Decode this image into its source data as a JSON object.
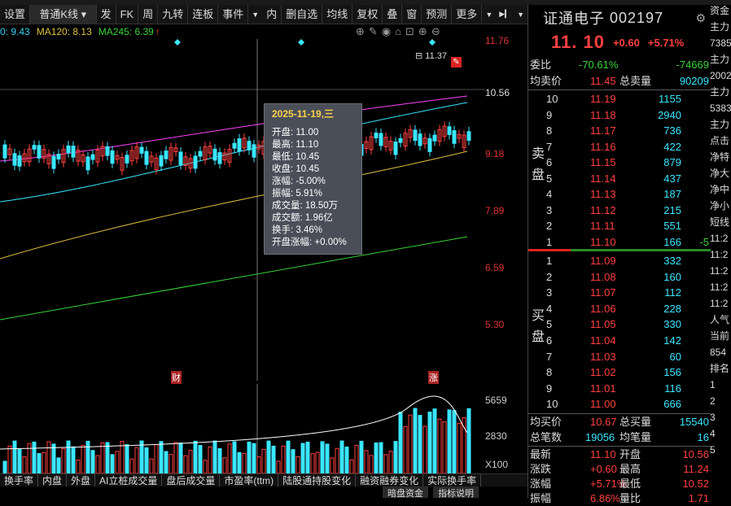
{
  "toolbar": {
    "settings": "设置",
    "ktype": "普通K线",
    "items": [
      "发",
      "FK",
      "周",
      "九转",
      "连板",
      "事件",
      "内",
      "删自选",
      "均线",
      "复权",
      "叠",
      "窗",
      "预测",
      "更多"
    ]
  },
  "ma": [
    {
      "label": "0: 9.43",
      "color": "#ff40ff"
    },
    {
      "label": "MA120: 8.13",
      "color": "#e0c040"
    },
    {
      "label": "MA245: 6.39",
      "color": "#39d339"
    }
  ],
  "price_axis": [
    "11.76",
    "10.56",
    "9.18",
    "7.89",
    "6.59",
    "5.30"
  ],
  "high_label": "11.37",
  "markers": {
    "cai": "财",
    "zhang": "涨"
  },
  "tooltip": {
    "date": "2025-11-19,三",
    "lines": [
      "开盘: 11.00",
      "最高: 11.10",
      "最低: 10.45",
      "收盘: 10.45",
      "涨幅: -5.00%",
      "振幅: 5.91%",
      "成交量: 18.50万",
      "成交额: 1.96亿",
      "换手: 3.46%",
      "开盘涨幅: +0.00%"
    ]
  },
  "vol_axis": [
    "5659",
    "2830",
    "X100"
  ],
  "bottom_tabs": [
    "换手率",
    "内盘",
    "外盘",
    "AI立桩成交量",
    "盘后成交量",
    "市盈率(ttm)",
    "陆股通持股变化",
    "融资融券变化",
    "实际换手率"
  ],
  "bottom_tabs2": [
    "暗盘资金",
    "指标说明"
  ],
  "stock": {
    "name": "证通电子",
    "code": "002197",
    "price": "11. 10",
    "change": "+0.60",
    "pct": "+5.71%"
  },
  "weibi": {
    "label": "委比",
    "pct": "-70.61%",
    "val": "-74669"
  },
  "junmai": {
    "label": "均卖价",
    "val": "11.45",
    "label2": "总卖量",
    "val2": "90209"
  },
  "sell": [
    {
      "n": "10",
      "p": "11.19",
      "v": "1155"
    },
    {
      "n": "9",
      "p": "11.18",
      "v": "2940"
    },
    {
      "n": "8",
      "p": "11.17",
      "v": "736"
    },
    {
      "n": "7",
      "p": "11.16",
      "v": "422"
    },
    {
      "n": "6",
      "p": "11.15",
      "v": "879"
    },
    {
      "n": "5",
      "p": "11.14",
      "v": "437"
    },
    {
      "n": "4",
      "p": "11.13",
      "v": "187"
    },
    {
      "n": "3",
      "p": "11.12",
      "v": "215"
    },
    {
      "n": "2",
      "p": "11.11",
      "v": "551"
    },
    {
      "n": "1",
      "p": "11.10",
      "v": "166",
      "d": "-5"
    }
  ],
  "buy": [
    {
      "n": "1",
      "p": "11.09",
      "v": "332"
    },
    {
      "n": "2",
      "p": "11.08",
      "v": "160"
    },
    {
      "n": "3",
      "p": "11.07",
      "v": "112"
    },
    {
      "n": "4",
      "p": "11.06",
      "v": "228"
    },
    {
      "n": "5",
      "p": "11.05",
      "v": "330"
    },
    {
      "n": "6",
      "p": "11.04",
      "v": "142"
    },
    {
      "n": "7",
      "p": "11.03",
      "v": "60"
    },
    {
      "n": "8",
      "p": "11.02",
      "v": "156"
    },
    {
      "n": "9",
      "p": "11.01",
      "v": "116"
    },
    {
      "n": "10",
      "p": "11.00",
      "v": "666"
    }
  ],
  "sell_label": [
    "卖",
    "盘"
  ],
  "buy_label": [
    "买",
    "盘"
  ],
  "junmaijia": {
    "label": "均买价",
    "val": "10.67",
    "label2": "总买量",
    "val2": "15540"
  },
  "bishu": {
    "label": "总笔数",
    "val": "19056",
    "label2": "均笔量",
    "val2": "16"
  },
  "stats": [
    {
      "l": "最新",
      "v": "11.10",
      "l2": "开盘",
      "v2": "10.56"
    },
    {
      "l": "涨跌",
      "v": "+0.60",
      "l2": "最高",
      "v2": "11.24"
    },
    {
      "l": "涨幅",
      "v": "+5.71%",
      "l2": "最低",
      "v2": "10.52"
    },
    {
      "l": "振幅",
      "v": "6.86%",
      "l2": "量比",
      "v2": "1.71"
    }
  ],
  "far": [
    "资金",
    "主力",
    "7385",
    "主力",
    "2002",
    "主力",
    "5383",
    "主力",
    "点击",
    "净特",
    "净大",
    "净中",
    "净小",
    "短线",
    "11:2",
    "11:2",
    "11:2",
    "11:2",
    "11:2",
    "人气",
    "当前",
    "854",
    "排名",
    "1",
    "2",
    "3",
    "4",
    "5"
  ]
}
